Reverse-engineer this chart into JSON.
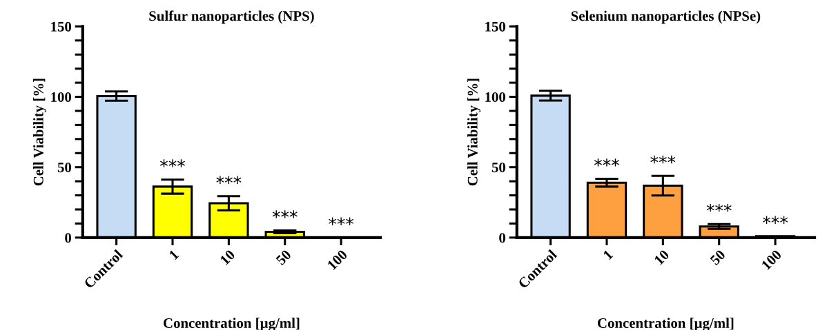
{
  "chart_data": [
    {
      "type": "bar",
      "title": "Sulfur nanoparticles (NPS)",
      "xlabel": "Concentration [µg/ml]",
      "ylabel": "Cell Viability [%]",
      "categories": [
        "Control",
        "1",
        "10",
        "50",
        "100"
      ],
      "values": [
        100.5,
        36.2,
        24.4,
        4.1,
        0
      ],
      "errors": [
        3.3,
        5,
        5,
        1,
        null
      ],
      "colors": [
        "#c6dcf5",
        "#ffff00",
        "#ffff00",
        "#ffff00",
        null
      ],
      "ylim": [
        0,
        150
      ],
      "yticks": [
        0,
        {
          "value": 10,
          "label": null
        },
        {
          "value": 20,
          "label": null
        },
        {
          "value": 30,
          "label": null
        },
        {
          "value": 40,
          "label": null
        },
        50,
        {
          "value": 60,
          "label": null
        },
        {
          "value": 70,
          "label": null
        },
        {
          "value": 80,
          "label": null
        },
        {
          "value": 90,
          "label": null
        },
        100,
        {
          "value": 110,
          "label": null
        },
        {
          "value": 120,
          "label": null
        },
        {
          "value": 130,
          "label": null
        },
        {
          "value": 140,
          "label": null
        },
        150
      ],
      "grid": false,
      "annotations": [
        {
          "text": "***",
          "x": "1",
          "y": 41.2
        },
        {
          "text": "***",
          "x": "10",
          "y": 29.4
        },
        {
          "text": "***",
          "x": "50",
          "y": 5.1
        },
        {
          "text": "***",
          "x": "100",
          "y": 0
        }
      ]
    },
    {
      "type": "bar",
      "title": "Selenium nanoparticles (NPSe)",
      "xlabel": "Concentration [µg/ml]",
      "ylabel": "Cell Viability [%]",
      "categories": [
        "Control",
        "1",
        "10",
        "50",
        "100"
      ],
      "values": [
        100.8,
        39,
        36.9,
        7.9,
        1
      ],
      "errors": [
        3.5,
        2.8,
        7,
        1.7,
        null
      ],
      "colors": [
        "#c6dcf5",
        "#ffa040",
        "#ffa040",
        "#ffa040",
        "#ffa040"
      ],
      "ylim": [
        0,
        150
      ],
      "yticks": [
        0,
        {
          "value": 10,
          "label": null
        },
        {
          "value": 20,
          "label": null
        },
        {
          "value": 30,
          "label": null
        },
        {
          "value": 40,
          "label": null
        },
        50,
        {
          "value": 60,
          "label": null
        },
        {
          "value": 70,
          "label": null
        },
        {
          "value": 80,
          "label": null
        },
        {
          "value": 90,
          "label": null
        },
        100,
        {
          "value": 110,
          "label": null
        },
        {
          "value": 120,
          "label": null
        },
        {
          "value": 130,
          "label": null
        },
        {
          "value": 140,
          "label": null
        },
        150
      ],
      "grid": false,
      "annotations": [
        {
          "text": "***",
          "x": "1",
          "y": 41.8
        },
        {
          "text": "***",
          "x": "10",
          "y": 43.9
        },
        {
          "text": "***",
          "x": "50",
          "y": 9.6
        },
        {
          "text": "***",
          "x": "100",
          "y": 1
        }
      ]
    }
  ]
}
